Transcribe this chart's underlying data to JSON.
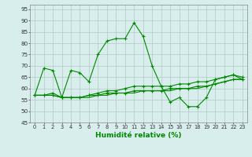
{
  "xlabel": "Humidité relative (%)",
  "bg_color": "#d8eeed",
  "grid_color": "#b0c8c4",
  "line_color": "#008800",
  "xlim": [
    -0.5,
    23.5
  ],
  "ylim": [
    45,
    97
  ],
  "yticks": [
    45,
    50,
    55,
    60,
    65,
    70,
    75,
    80,
    85,
    90,
    95
  ],
  "xticks": [
    0,
    1,
    2,
    3,
    4,
    5,
    6,
    7,
    8,
    9,
    10,
    11,
    12,
    13,
    14,
    15,
    16,
    17,
    18,
    19,
    20,
    21,
    22,
    23
  ],
  "series1": [
    57,
    69,
    68,
    56,
    68,
    67,
    63,
    75,
    81,
    82,
    82,
    89,
    83,
    70,
    61,
    54,
    56,
    52,
    52,
    56,
    64,
    65,
    66,
    64
  ],
  "series2": [
    57,
    57,
    58,
    56,
    56,
    56,
    57,
    58,
    59,
    59,
    60,
    61,
    61,
    61,
    61,
    61,
    62,
    62,
    63,
    63,
    64,
    65,
    66,
    65
  ],
  "series3": [
    57,
    57,
    57,
    56,
    56,
    56,
    57,
    57,
    58,
    58,
    58,
    59,
    59,
    59,
    59,
    60,
    60,
    60,
    61,
    61,
    62,
    63,
    64,
    64
  ],
  "series4": [
    57,
    57,
    57,
    56,
    56,
    56,
    56,
    57,
    57,
    58,
    58,
    58,
    59,
    59,
    59,
    59,
    60,
    60,
    60,
    61,
    62,
    63,
    64,
    64
  ]
}
